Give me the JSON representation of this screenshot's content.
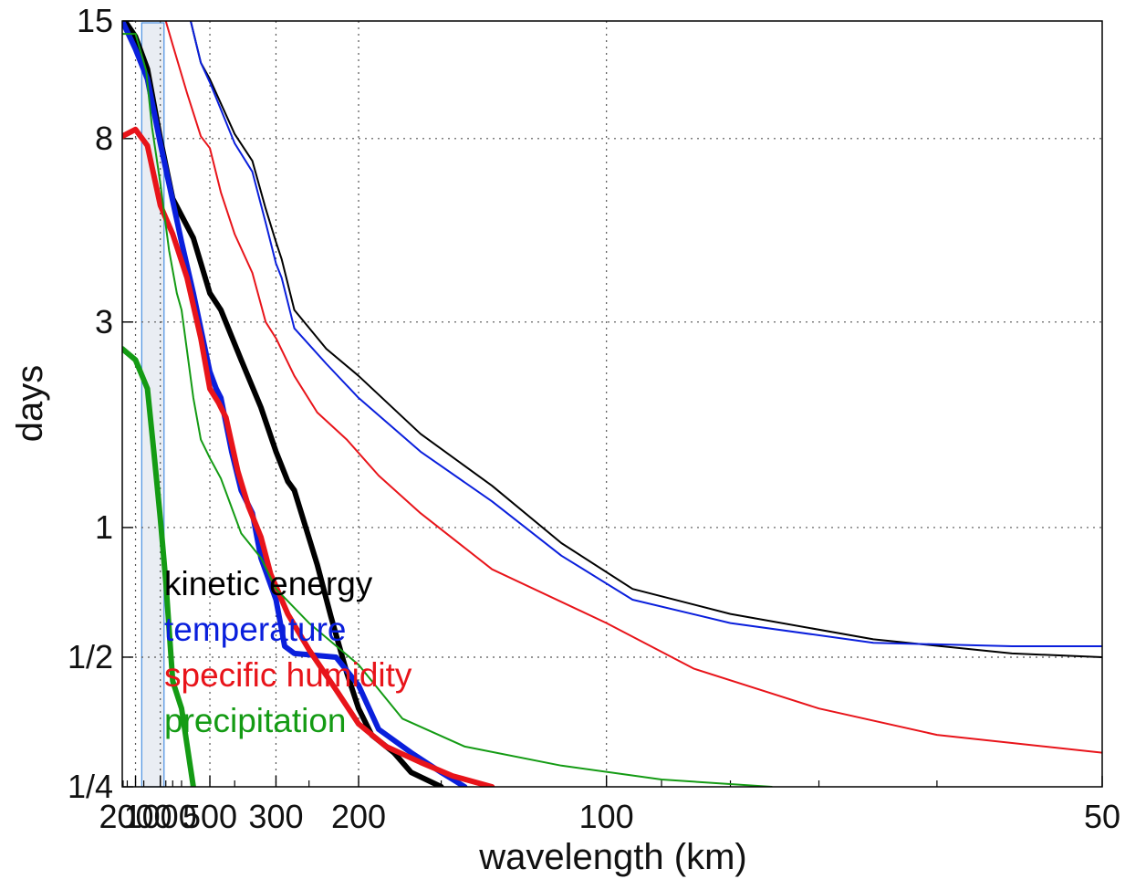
{
  "chart_data": {
    "type": "line",
    "title": "",
    "xlabel": "wavelength (km)",
    "ylabel": "days",
    "x_scale": "reciprocal",
    "y_scale": "log",
    "xlim": [
      4300,
      50
    ],
    "ylim": [
      0.25,
      15
    ],
    "grid": true,
    "legend_position": "bottom-left",
    "x_ticks": [
      {
        "value": 2000,
        "label": "2000"
      },
      {
        "value": 1000,
        "label": "1000"
      },
      {
        "value": 500,
        "label": "500"
      },
      {
        "value": 300,
        "label": "300"
      },
      {
        "value": 200,
        "label": "200"
      },
      {
        "value": 100,
        "label": "100"
      },
      {
        "value": 50,
        "label": "50"
      }
    ],
    "y_ticks": [
      {
        "value": 0.25,
        "label": "1/4"
      },
      {
        "value": 0.5,
        "label": "1/2"
      },
      {
        "value": 1,
        "label": "1"
      },
      {
        "value": 3,
        "label": "3"
      },
      {
        "value": 8,
        "label": "8"
      },
      {
        "value": 15,
        "label": "15"
      }
    ],
    "highlight_band": {
      "x": [
        1600,
        930
      ],
      "color": "#e9edf3",
      "edge_color": "#4a90e2"
    },
    "legend": [
      {
        "label": "kinetic energy",
        "color": "#000000"
      },
      {
        "label": "temperature",
        "color": "#0a1fdc"
      },
      {
        "label": "specific humidity",
        "color": "#e8141a"
      },
      {
        "label": "precipitation",
        "color": "#149b14"
      }
    ],
    "series": [
      {
        "color": "#000000",
        "width": 6,
        "points": [
          [
            3500,
            15
          ],
          [
            2000,
            13.8
          ],
          [
            1350,
            11.6
          ],
          [
            1000,
            8
          ],
          [
            800,
            5.8
          ],
          [
            600,
            4.7
          ],
          [
            500,
            3.5
          ],
          [
            450,
            3.2
          ],
          [
            380,
            2.45
          ],
          [
            330,
            1.9
          ],
          [
            300,
            1.5
          ],
          [
            280,
            1.28
          ],
          [
            270,
            1.22
          ],
          [
            240,
            0.82
          ],
          [
            225,
            0.62
          ],
          [
            210,
            0.46
          ],
          [
            200,
            0.38
          ],
          [
            190,
            0.33
          ],
          [
            175,
            0.3
          ],
          [
            165,
            0.27
          ],
          [
            150,
            0.25
          ]
        ]
      },
      {
        "color": "#0a1fdc",
        "width": 6,
        "points": [
          [
            4300,
            15
          ],
          [
            2000,
            12.9
          ],
          [
            1350,
            11.0
          ],
          [
            1000,
            7.8
          ],
          [
            700,
            4.6
          ],
          [
            600,
            3.5
          ],
          [
            500,
            2.3
          ],
          [
            470,
            2.1
          ],
          [
            450,
            2.0
          ],
          [
            410,
            1.5
          ],
          [
            380,
            1.22
          ],
          [
            350,
            1.08
          ],
          [
            330,
            0.85
          ],
          [
            300,
            0.68
          ],
          [
            285,
            0.53
          ],
          [
            270,
            0.51
          ],
          [
            220,
            0.5
          ],
          [
            200,
            0.43
          ],
          [
            185,
            0.34
          ],
          [
            165,
            0.3
          ],
          [
            150,
            0.27
          ],
          [
            140,
            0.25
          ]
        ]
      },
      {
        "color": "#e8141a",
        "width": 6,
        "points": [
          [
            4300,
            8.1
          ],
          [
            2000,
            8.4
          ],
          [
            1350,
            7.7
          ],
          [
            1000,
            5.6
          ],
          [
            800,
            4.8
          ],
          [
            650,
            3.8
          ],
          [
            550,
            2.75
          ],
          [
            500,
            2.1
          ],
          [
            460,
            1.95
          ],
          [
            430,
            1.8
          ],
          [
            390,
            1.35
          ],
          [
            360,
            1.12
          ],
          [
            330,
            0.95
          ],
          [
            310,
            0.78
          ],
          [
            280,
            0.63
          ],
          [
            250,
            0.52
          ],
          [
            220,
            0.42
          ],
          [
            200,
            0.35
          ],
          [
            180,
            0.31
          ],
          [
            160,
            0.285
          ],
          [
            145,
            0.265
          ],
          [
            130,
            0.25
          ]
        ]
      },
      {
        "color": "#149b14",
        "width": 6,
        "points": [
          [
            4300,
            2.6
          ],
          [
            2000,
            2.45
          ],
          [
            1350,
            2.1
          ],
          [
            1150,
            1.5
          ],
          [
            1000,
            1.05
          ],
          [
            900,
            0.75
          ],
          [
            800,
            0.44
          ],
          [
            700,
            0.38
          ],
          [
            600,
            0.25
          ]
        ]
      },
      {
        "color": "#000000",
        "width": 2,
        "points": [
          [
            620,
            15
          ],
          [
            550,
            12
          ],
          [
            500,
            11
          ],
          [
            400,
            8.2
          ],
          [
            350,
            7.1
          ],
          [
            320,
            5.5
          ],
          [
            300,
            4.6
          ],
          [
            290,
            4.2
          ],
          [
            270,
            3.2
          ],
          [
            230,
            2.6
          ],
          [
            200,
            2.25
          ],
          [
            160,
            1.65
          ],
          [
            130,
            1.25
          ],
          [
            110,
            0.92
          ],
          [
            95,
            0.72
          ],
          [
            80,
            0.63
          ],
          [
            65,
            0.55
          ],
          [
            55,
            0.51
          ],
          [
            50,
            0.5
          ]
        ]
      },
      {
        "color": "#0a1fdc",
        "width": 2,
        "points": [
          [
            620,
            15
          ],
          [
            550,
            12
          ],
          [
            500,
            10.8
          ],
          [
            400,
            7.8
          ],
          [
            350,
            6.7
          ],
          [
            320,
            5.1
          ],
          [
            300,
            4.1
          ],
          [
            290,
            3.8
          ],
          [
            270,
            2.9
          ],
          [
            230,
            2.4
          ],
          [
            200,
            2.0
          ],
          [
            160,
            1.5
          ],
          [
            130,
            1.15
          ],
          [
            110,
            0.86
          ],
          [
            95,
            0.68
          ],
          [
            80,
            0.6
          ],
          [
            65,
            0.54
          ],
          [
            55,
            0.53
          ],
          [
            50,
            0.53
          ]
        ]
      },
      {
        "color": "#e8141a",
        "width": 2,
        "points": [
          [
            900,
            15
          ],
          [
            800,
            13.2
          ],
          [
            650,
            10.2
          ],
          [
            550,
            8.1
          ],
          [
            500,
            7.6
          ],
          [
            450,
            6.0
          ],
          [
            400,
            4.8
          ],
          [
            350,
            3.9
          ],
          [
            320,
            3.0
          ],
          [
            300,
            2.75
          ],
          [
            270,
            2.25
          ],
          [
            240,
            1.85
          ],
          [
            210,
            1.6
          ],
          [
            185,
            1.32
          ],
          [
            160,
            1.08
          ],
          [
            130,
            0.8
          ],
          [
            100,
            0.6
          ],
          [
            85,
            0.47
          ],
          [
            70,
            0.38
          ],
          [
            60,
            0.33
          ],
          [
            50,
            0.3
          ]
        ]
      },
      {
        "color": "#149b14",
        "width": 2,
        "points": [
          [
            4300,
            14
          ],
          [
            2000,
            14
          ],
          [
            1400,
            11.5
          ],
          [
            1200,
            8.5
          ],
          [
            1000,
            6.3
          ],
          [
            850,
            4.4
          ],
          [
            750,
            3.5
          ],
          [
            700,
            3.2
          ],
          [
            600,
            2.0
          ],
          [
            550,
            1.6
          ],
          [
            500,
            1.45
          ],
          [
            450,
            1.3
          ],
          [
            380,
            0.97
          ],
          [
            330,
            0.85
          ],
          [
            300,
            0.72
          ],
          [
            250,
            0.6
          ],
          [
            200,
            0.48
          ],
          [
            170,
            0.36
          ],
          [
            140,
            0.31
          ],
          [
            110,
            0.28
          ],
          [
            90,
            0.26
          ],
          [
            75,
            0.25
          ]
        ]
      }
    ]
  }
}
